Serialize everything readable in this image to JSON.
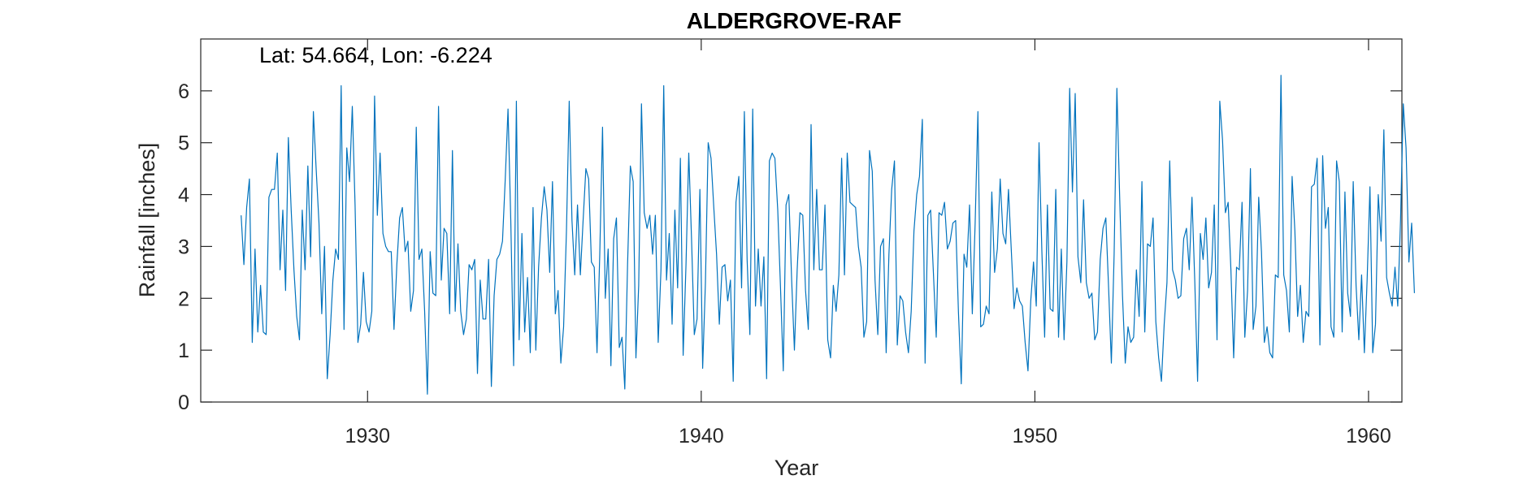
{
  "chart_data": {
    "type": "line",
    "title": "ALDERGROVE-RAF",
    "annotation": "Lat: 54.664, Lon: -6.224",
    "xlabel": "Year",
    "ylabel": "Rainfall [inches]",
    "xlim": [
      1925,
      1961
    ],
    "ylim": [
      0,
      7
    ],
    "xticks": [
      1930,
      1940,
      1950,
      1960
    ],
    "yticks": [
      0,
      1,
      2,
      3,
      4,
      5,
      6
    ],
    "grid": false,
    "box": true,
    "line_color": "#0072BD",
    "series": [
      {
        "x_start": 1926.21,
        "x_step": 0.08333,
        "values": [
          3.6,
          2.65,
          3.75,
          4.3,
          1.15,
          2.95,
          1.35,
          2.25,
          1.35,
          1.3,
          3.95,
          4.1,
          4.1,
          4.8,
          2.55,
          3.7,
          2.15,
          5.1,
          3.7,
          2.55,
          1.65,
          1.2,
          3.7,
          2.55,
          4.55,
          2.8,
          5.6,
          4.5,
          3.45,
          1.7,
          3.0,
          0.45,
          1.3,
          2.35,
          2.95,
          2.75,
          6.1,
          1.4,
          4.9,
          4.25,
          5.7,
          3.8,
          1.15,
          1.5,
          2.5,
          1.55,
          1.35,
          1.75,
          5.9,
          3.6,
          4.8,
          3.25,
          3.0,
          2.9,
          2.9,
          1.4,
          2.65,
          3.55,
          3.75,
          2.9,
          3.1,
          1.75,
          2.15,
          5.3,
          2.75,
          2.95,
          1.75,
          0.15,
          2.9,
          2.1,
          2.05,
          5.7,
          2.35,
          3.35,
          3.25,
          1.7,
          4.85,
          1.75,
          3.05,
          1.75,
          1.3,
          1.6,
          2.65,
          2.55,
          2.75,
          0.55,
          2.35,
          1.6,
          1.6,
          2.75,
          0.3,
          2.05,
          2.75,
          2.85,
          3.1,
          4.3,
          5.65,
          3.5,
          0.7,
          5.8,
          1.2,
          3.25,
          1.35,
          2.4,
          0.95,
          3.75,
          1.0,
          2.6,
          3.55,
          4.15,
          3.7,
          2.5,
          4.25,
          1.7,
          2.15,
          0.75,
          1.45,
          3.3,
          5.8,
          3.5,
          2.45,
          3.8,
          2.45,
          3.5,
          4.5,
          4.3,
          2.7,
          2.6,
          0.95,
          2.85,
          5.3,
          2.0,
          2.95,
          0.7,
          3.15,
          3.55,
          1.05,
          1.25,
          0.25,
          2.65,
          4.55,
          4.25,
          0.85,
          2.25,
          5.75,
          3.65,
          3.35,
          3.6,
          2.85,
          3.6,
          1.15,
          2.55,
          6.1,
          2.35,
          3.25,
          1.5,
          3.7,
          2.2,
          4.7,
          0.9,
          2.65,
          4.8,
          3.15,
          1.3,
          1.6,
          4.1,
          0.65,
          2.3,
          5.0,
          4.7,
          3.75,
          2.85,
          1.5,
          2.6,
          2.65,
          1.95,
          2.35,
          0.4,
          3.85,
          4.35,
          2.2,
          5.6,
          2.75,
          1.3,
          5.65,
          1.85,
          2.95,
          1.85,
          2.8,
          0.45,
          4.65,
          4.8,
          4.7,
          3.7,
          2.2,
          0.6,
          3.8,
          4.0,
          2.35,
          1.0,
          2.55,
          3.65,
          3.6,
          2.15,
          1.4,
          5.35,
          2.55,
          4.1,
          2.55,
          2.55,
          3.8,
          1.2,
          0.85,
          2.25,
          1.75,
          2.45,
          4.7,
          2.45,
          4.8,
          3.85,
          3.8,
          3.75,
          3.0,
          2.6,
          1.25,
          1.55,
          4.85,
          4.45,
          2.35,
          1.3,
          3.0,
          3.15,
          0.95,
          2.85,
          4.1,
          4.65,
          1.1,
          2.05,
          1.95,
          1.35,
          0.95,
          1.75,
          3.3,
          4.0,
          4.35,
          5.45,
          0.75,
          3.6,
          3.7,
          2.5,
          1.25,
          3.65,
          3.6,
          3.85,
          2.95,
          3.1,
          3.45,
          3.5,
          1.75,
          0.35,
          2.85,
          2.6,
          3.8,
          1.7,
          3.45,
          5.6,
          1.45,
          1.5,
          1.85,
          1.7,
          4.05,
          2.5,
          2.95,
          4.3,
          3.25,
          3.05,
          4.1,
          2.95,
          1.8,
          2.2,
          1.95,
          1.85,
          1.15,
          0.6,
          1.95,
          2.7,
          1.85,
          5.0,
          2.9,
          1.25,
          3.8,
          1.8,
          1.75,
          4.1,
          1.25,
          2.95,
          1.2,
          2.7,
          6.05,
          4.05,
          5.95,
          2.8,
          2.3,
          3.9,
          2.3,
          2.0,
          2.1,
          1.2,
          1.35,
          2.75,
          3.35,
          3.55,
          2.2,
          0.75,
          2.85,
          6.05,
          3.9,
          2.05,
          0.75,
          1.45,
          1.15,
          1.25,
          2.55,
          1.65,
          4.25,
          1.35,
          3.05,
          3.0,
          3.55,
          1.55,
          0.85,
          0.4,
          1.5,
          2.3,
          4.65,
          2.55,
          2.35,
          2.0,
          2.05,
          3.15,
          3.35,
          2.55,
          3.95,
          2.35,
          0.4,
          3.25,
          2.75,
          3.55,
          2.2,
          2.5,
          3.8,
          1.2,
          5.8,
          5.05,
          3.65,
          3.85,
          2.55,
          0.85,
          2.6,
          2.55,
          3.85,
          1.25,
          2.15,
          4.5,
          1.4,
          1.85,
          3.95,
          2.9,
          1.15,
          1.45,
          0.95,
          0.85,
          2.45,
          2.4,
          6.3,
          2.45,
          2.15,
          1.35,
          4.35,
          3.3,
          1.65,
          2.25,
          1.15,
          1.75,
          1.65,
          4.15,
          4.2,
          4.7,
          1.1,
          4.75,
          3.35,
          3.75,
          1.45,
          1.25,
          4.65,
          4.25,
          1.35,
          4.05,
          2.1,
          1.65,
          4.25,
          2.25,
          1.2,
          2.45,
          0.95,
          2.35,
          4.15,
          0.95,
          1.5,
          4.0,
          3.1,
          5.25,
          2.4,
          2.1,
          1.85,
          2.6,
          1.85,
          3.5,
          5.75,
          4.9,
          2.7,
          3.45,
          2.1
        ]
      }
    ]
  }
}
